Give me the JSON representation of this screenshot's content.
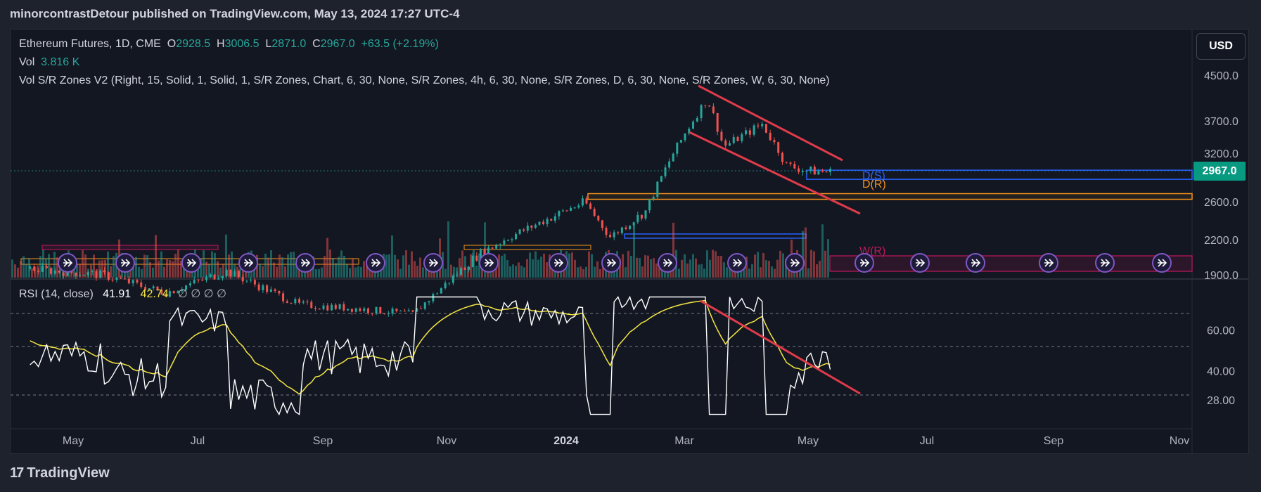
{
  "header": "minorcontrastDetour published on TradingView.com, May 13, 2024 17:27 UTC-4",
  "legend": {
    "symbol": "Ethereum Futures, 1D, CME",
    "o_label": "O",
    "o_value": "2928.5",
    "h_label": "H",
    "h_value": "3006.5",
    "l_label": "L",
    "l_value": "2871.0",
    "c_label": "C",
    "c_value": "2967.0",
    "change": "+63.5 (+2.19%)",
    "vol_label": "Vol",
    "vol_value": "3.816 K",
    "indicator": "Vol S/R Zones V2 (Right, 15, Solid, 1, Solid, 1, S/R Zones, Chart, 6, 30, None, S/R Zones, 4h, 6, 30, None, S/R Zones, D, 6, 30, None, S/R Zones, W, 6, 30, None)",
    "rsi_label": "RSI (14, close)",
    "rsi_value": "41.91",
    "rsi_ma_value": "42.74",
    "rsi_extra": "∅ ∅ ∅ ∅"
  },
  "currency": "USD",
  "current_price_label": "2967.0",
  "footer_logo": "17",
  "footer_brand": "TradingView",
  "colors": {
    "up": "#26a69a",
    "down": "#ef5350",
    "channel": "#e03b4a",
    "support_zone": "#2962ff",
    "resistance_zone": "#f7931a",
    "weekly_zone": "#c2185b",
    "rsi_line": "#ffffff",
    "rsi_ma": "#f5e642",
    "replay_icon": "#7e57c2"
  },
  "chart_data": {
    "type": "candlestick",
    "instrument": "Ethereum Futures",
    "interval": "1D",
    "exchange": "CME",
    "x_ticks": [
      "May",
      "Jul",
      "Sep",
      "Nov",
      "2024",
      "Mar",
      "May",
      "Jul",
      "Sep",
      "Nov"
    ],
    "y_ticks": [
      "4500.0",
      "3700.0",
      "3200.0",
      "2600.0",
      "2200.0",
      "1900.0"
    ],
    "ylim": [
      1900,
      4500
    ],
    "current_price": 2967.0,
    "approx_close_path": [
      {
        "x": "2023-04-10",
        "y": 1950
      },
      {
        "x": "2023-05-15",
        "y": 1900
      },
      {
        "x": "2023-06-15",
        "y": 1750
      },
      {
        "x": "2023-07-15",
        "y": 1930
      },
      {
        "x": "2023-08-20",
        "y": 1650
      },
      {
        "x": "2023-09-15",
        "y": 1620
      },
      {
        "x": "2023-10-15",
        "y": 1570
      },
      {
        "x": "2023-10-31",
        "y": 1820
      },
      {
        "x": "2023-11-15",
        "y": 2050
      },
      {
        "x": "2023-12-10",
        "y": 2300
      },
      {
        "x": "2024-01-10",
        "y": 2600
      },
      {
        "x": "2024-01-23",
        "y": 2230
      },
      {
        "x": "2024-02-10",
        "y": 2500
      },
      {
        "x": "2024-02-28",
        "y": 3400
      },
      {
        "x": "2024-03-12",
        "y": 4090
      },
      {
        "x": "2024-03-20",
        "y": 3300
      },
      {
        "x": "2024-04-08",
        "y": 3650
      },
      {
        "x": "2024-04-20",
        "y": 3050
      },
      {
        "x": "2024-05-01",
        "y": 2980
      },
      {
        "x": "2024-05-13",
        "y": 2967
      }
    ],
    "volume_label": "Vol",
    "sr_zone_labels": [
      "D(S)",
      "D(R)",
      "W(R)"
    ],
    "rsi": {
      "label": "RSI (14, close)",
      "y_ticks": [
        "60.00",
        "40.00",
        "28.00"
      ],
      "levels": [
        70,
        50,
        30
      ],
      "last": 41.91,
      "ma_last": 42.74
    }
  }
}
